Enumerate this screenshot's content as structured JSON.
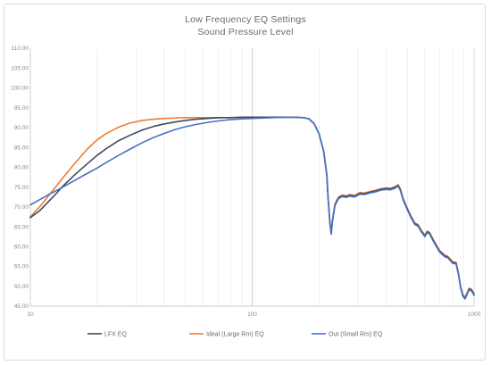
{
  "chart_data": {
    "type": "line",
    "title": "Low Frequency EQ Settings",
    "subtitle": "Sound Pressure Level",
    "xlabel": "",
    "ylabel": "",
    "x_scale": "log",
    "xlim": [
      10,
      1000
    ],
    "ylim": [
      45,
      110
    ],
    "x_ticks": [
      "10",
      "100",
      "1000"
    ],
    "y_ticks": [
      "110.00",
      "105.00",
      "100.00",
      "95.00",
      "90.00",
      "85.00",
      "80.00",
      "75.00",
      "70.00",
      "65.00",
      "60.00",
      "55.00",
      "50.00",
      "45.00"
    ],
    "grid": "vertical-major-minor",
    "legend_position": "bottom",
    "series": [
      {
        "name": "LFX EQ",
        "color": "#3a4a5c",
        "points": [
          [
            10,
            67.3
          ],
          [
            11,
            69
          ],
          [
            12,
            71.2
          ],
          [
            13,
            73.2
          ],
          [
            14,
            75.2
          ],
          [
            16,
            78.3
          ],
          [
            18,
            80.8
          ],
          [
            20,
            83
          ],
          [
            22,
            84.7
          ],
          [
            25,
            86.7
          ],
          [
            28,
            88
          ],
          [
            32,
            89.4
          ],
          [
            36,
            90.3
          ],
          [
            40,
            90.9
          ],
          [
            45,
            91.4
          ],
          [
            50,
            91.8
          ],
          [
            56,
            92.1
          ],
          [
            63,
            92.3
          ],
          [
            71,
            92.5
          ],
          [
            80,
            92.5
          ],
          [
            90,
            92.6
          ],
          [
            100,
            92.6
          ],
          [
            125,
            92.6
          ],
          [
            150,
            92.6
          ],
          [
            170,
            92.5
          ],
          [
            180,
            92.2
          ],
          [
            190,
            91
          ],
          [
            200,
            88.5
          ],
          [
            210,
            84
          ],
          [
            217,
            78
          ],
          [
            220,
            72
          ],
          [
            224,
            66
          ],
          [
            227,
            63.3
          ],
          [
            230,
            66.5
          ],
          [
            236,
            70.5
          ],
          [
            245,
            72.3
          ],
          [
            255,
            72.8
          ],
          [
            265,
            72.6
          ],
          [
            275,
            72.9
          ],
          [
            290,
            72.7
          ],
          [
            305,
            73.4
          ],
          [
            320,
            73.3
          ],
          [
            340,
            73.7
          ],
          [
            360,
            74
          ],
          [
            380,
            74.4
          ],
          [
            400,
            74.6
          ],
          [
            420,
            74.5
          ],
          [
            440,
            74.9
          ],
          [
            455,
            75.4
          ],
          [
            465,
            74.4
          ],
          [
            480,
            71.8
          ],
          [
            500,
            69.5
          ],
          [
            520,
            67.5
          ],
          [
            540,
            65.8
          ],
          [
            560,
            65.3
          ],
          [
            580,
            63.8
          ],
          [
            600,
            62.7
          ],
          [
            615,
            63.7
          ],
          [
            630,
            63.4
          ],
          [
            660,
            61.2
          ],
          [
            700,
            58.8
          ],
          [
            740,
            57.6
          ],
          [
            760,
            57.4
          ],
          [
            780,
            56.7
          ],
          [
            800,
            56
          ],
          [
            830,
            55.8
          ],
          [
            850,
            53.2
          ],
          [
            870,
            49.8
          ],
          [
            890,
            47.7
          ],
          [
            910,
            47
          ],
          [
            930,
            48.1
          ],
          [
            950,
            49.3
          ],
          [
            970,
            49.1
          ],
          [
            990,
            48.4
          ],
          [
            1000,
            47.9
          ]
        ]
      },
      {
        "name": "Ideal (Large Rm) EQ",
        "color": "#ed7d31",
        "points": [
          [
            10,
            67.5
          ],
          [
            11,
            70
          ],
          [
            12,
            72.6
          ],
          [
            13,
            75
          ],
          [
            14,
            77.3
          ],
          [
            16,
            81.2
          ],
          [
            18,
            84.5
          ],
          [
            20,
            86.9
          ],
          [
            22,
            88.5
          ],
          [
            25,
            90.1
          ],
          [
            28,
            91.1
          ],
          [
            32,
            91.8
          ],
          [
            36,
            92.1
          ],
          [
            40,
            92.3
          ],
          [
            45,
            92.4
          ],
          [
            50,
            92.5
          ],
          [
            63,
            92.5
          ],
          [
            80,
            92.5
          ],
          [
            100,
            92.6
          ],
          [
            125,
            92.6
          ],
          [
            150,
            92.6
          ],
          [
            170,
            92.5
          ],
          [
            180,
            92.2
          ],
          [
            190,
            91
          ],
          [
            200,
            88.5
          ],
          [
            210,
            84
          ],
          [
            217,
            78
          ],
          [
            220,
            72
          ],
          [
            224,
            66
          ],
          [
            227,
            63.5
          ],
          [
            230,
            66.7
          ],
          [
            236,
            70.7
          ],
          [
            245,
            72.5
          ],
          [
            255,
            73
          ],
          [
            265,
            72.8
          ],
          [
            275,
            73.1
          ],
          [
            290,
            72.9
          ],
          [
            305,
            73.6
          ],
          [
            320,
            73.5
          ],
          [
            340,
            73.9
          ],
          [
            360,
            74.2
          ],
          [
            380,
            74.6
          ],
          [
            400,
            74.8
          ],
          [
            420,
            74.7
          ],
          [
            440,
            75.1
          ],
          [
            455,
            75.6
          ],
          [
            465,
            74.6
          ],
          [
            480,
            72
          ],
          [
            500,
            69.7
          ],
          [
            520,
            67.7
          ],
          [
            540,
            66
          ],
          [
            560,
            65.5
          ],
          [
            580,
            64
          ],
          [
            600,
            62.9
          ],
          [
            615,
            63.9
          ],
          [
            630,
            63.6
          ],
          [
            660,
            61.4
          ],
          [
            700,
            59
          ],
          [
            740,
            57.8
          ],
          [
            760,
            57.6
          ],
          [
            780,
            56.9
          ],
          [
            800,
            56.2
          ],
          [
            830,
            56
          ],
          [
            850,
            53.4
          ],
          [
            870,
            50
          ],
          [
            890,
            47.9
          ],
          [
            910,
            47.2
          ],
          [
            930,
            48.3
          ],
          [
            950,
            49.5
          ],
          [
            970,
            49.3
          ],
          [
            990,
            48.6
          ],
          [
            1000,
            48.1
          ]
        ]
      },
      {
        "name": "Out (Small Rm) EQ",
        "color": "#4472c4",
        "points": [
          [
            10,
            70.5
          ],
          [
            11,
            71.8
          ],
          [
            12,
            73
          ],
          [
            13,
            74
          ],
          [
            14,
            75
          ],
          [
            16,
            76.8
          ],
          [
            18,
            78.4
          ],
          [
            20,
            79.8
          ],
          [
            22,
            81.2
          ],
          [
            25,
            83
          ],
          [
            28,
            84.5
          ],
          [
            32,
            86.2
          ],
          [
            36,
            87.5
          ],
          [
            40,
            88.5
          ],
          [
            45,
            89.5
          ],
          [
            50,
            90.2
          ],
          [
            56,
            90.8
          ],
          [
            63,
            91.3
          ],
          [
            71,
            91.7
          ],
          [
            80,
            92
          ],
          [
            90,
            92.2
          ],
          [
            100,
            92.3
          ],
          [
            125,
            92.5
          ],
          [
            150,
            92.6
          ],
          [
            170,
            92.5
          ],
          [
            180,
            92.2
          ],
          [
            190,
            91
          ],
          [
            200,
            88.5
          ],
          [
            210,
            84
          ],
          [
            217,
            78
          ],
          [
            220,
            72
          ],
          [
            224,
            66
          ],
          [
            227,
            63.1
          ],
          [
            230,
            66.3
          ],
          [
            236,
            70.3
          ],
          [
            245,
            72.1
          ],
          [
            255,
            72.6
          ],
          [
            265,
            72.4
          ],
          [
            275,
            72.7
          ],
          [
            290,
            72.5
          ],
          [
            305,
            73.2
          ],
          [
            320,
            73.1
          ],
          [
            340,
            73.5
          ],
          [
            360,
            73.8
          ],
          [
            380,
            74.2
          ],
          [
            400,
            74.4
          ],
          [
            420,
            74.3
          ],
          [
            440,
            74.7
          ],
          [
            455,
            75.2
          ],
          [
            465,
            74.2
          ],
          [
            480,
            71.6
          ],
          [
            500,
            69.3
          ],
          [
            520,
            67.3
          ],
          [
            540,
            65.6
          ],
          [
            560,
            65.1
          ],
          [
            580,
            63.6
          ],
          [
            600,
            62.5
          ],
          [
            615,
            63.5
          ],
          [
            630,
            63.2
          ],
          [
            660,
            61
          ],
          [
            700,
            58.6
          ],
          [
            740,
            57.4
          ],
          [
            760,
            57.2
          ],
          [
            780,
            56.5
          ],
          [
            800,
            55.8
          ],
          [
            830,
            55.6
          ],
          [
            850,
            53
          ],
          [
            870,
            49.6
          ],
          [
            890,
            47.5
          ],
          [
            910,
            46.8
          ],
          [
            930,
            47.9
          ],
          [
            950,
            49.1
          ],
          [
            970,
            48.9
          ],
          [
            990,
            48.2
          ],
          [
            1000,
            47.7
          ]
        ]
      }
    ]
  }
}
